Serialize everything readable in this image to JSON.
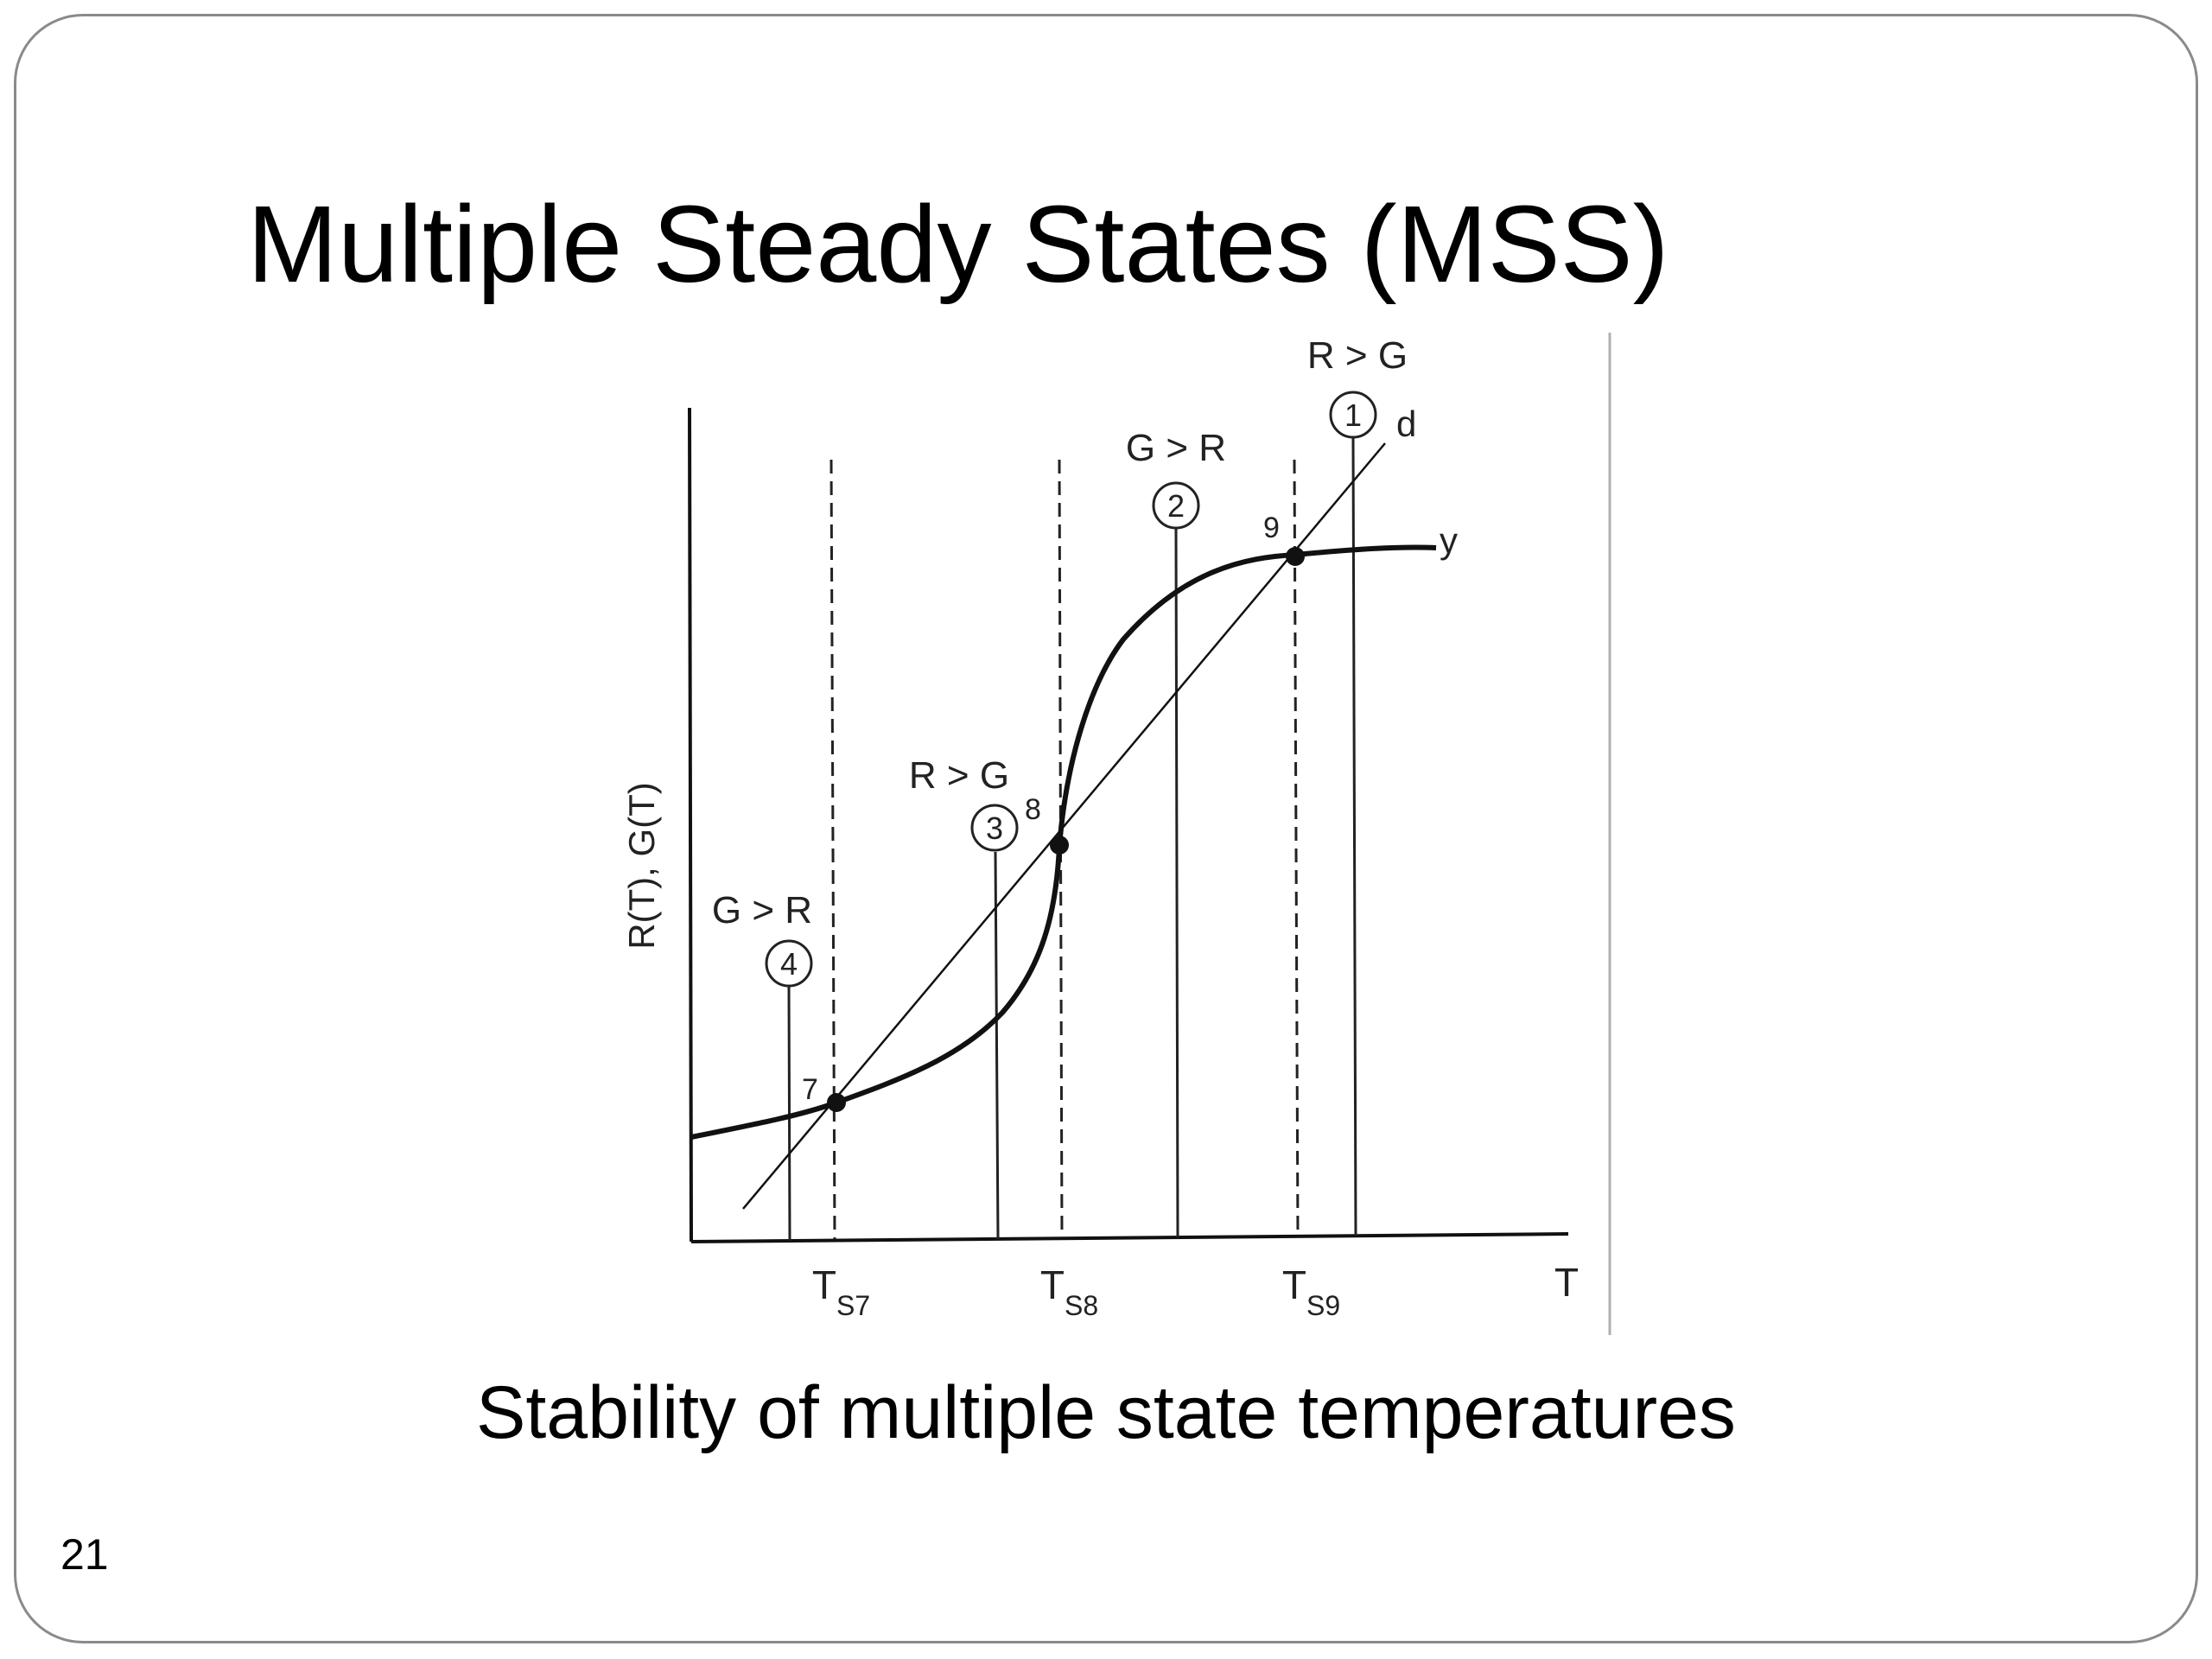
{
  "slide": {
    "title": "Multiple Steady States (MSS)",
    "caption": "Stability of multiple state temperatures",
    "number": "21"
  },
  "diagram": {
    "y_axis_label": "R(T), G(T)",
    "x_axis_label": "T",
    "curve_labels": {
      "line": "d",
      "curve": "y"
    },
    "ticks": [
      {
        "main": "T",
        "sub": "S7"
      },
      {
        "main": "T",
        "sub": "S8"
      },
      {
        "main": "T",
        "sub": "S9"
      }
    ],
    "points": [
      "7",
      "8",
      "9"
    ],
    "regions": [
      {
        "id": "1",
        "label": "R > G"
      },
      {
        "id": "2",
        "label": "G > R"
      },
      {
        "id": "3",
        "label": "R > G"
      },
      {
        "id": "4",
        "label": "G > R"
      }
    ]
  }
}
